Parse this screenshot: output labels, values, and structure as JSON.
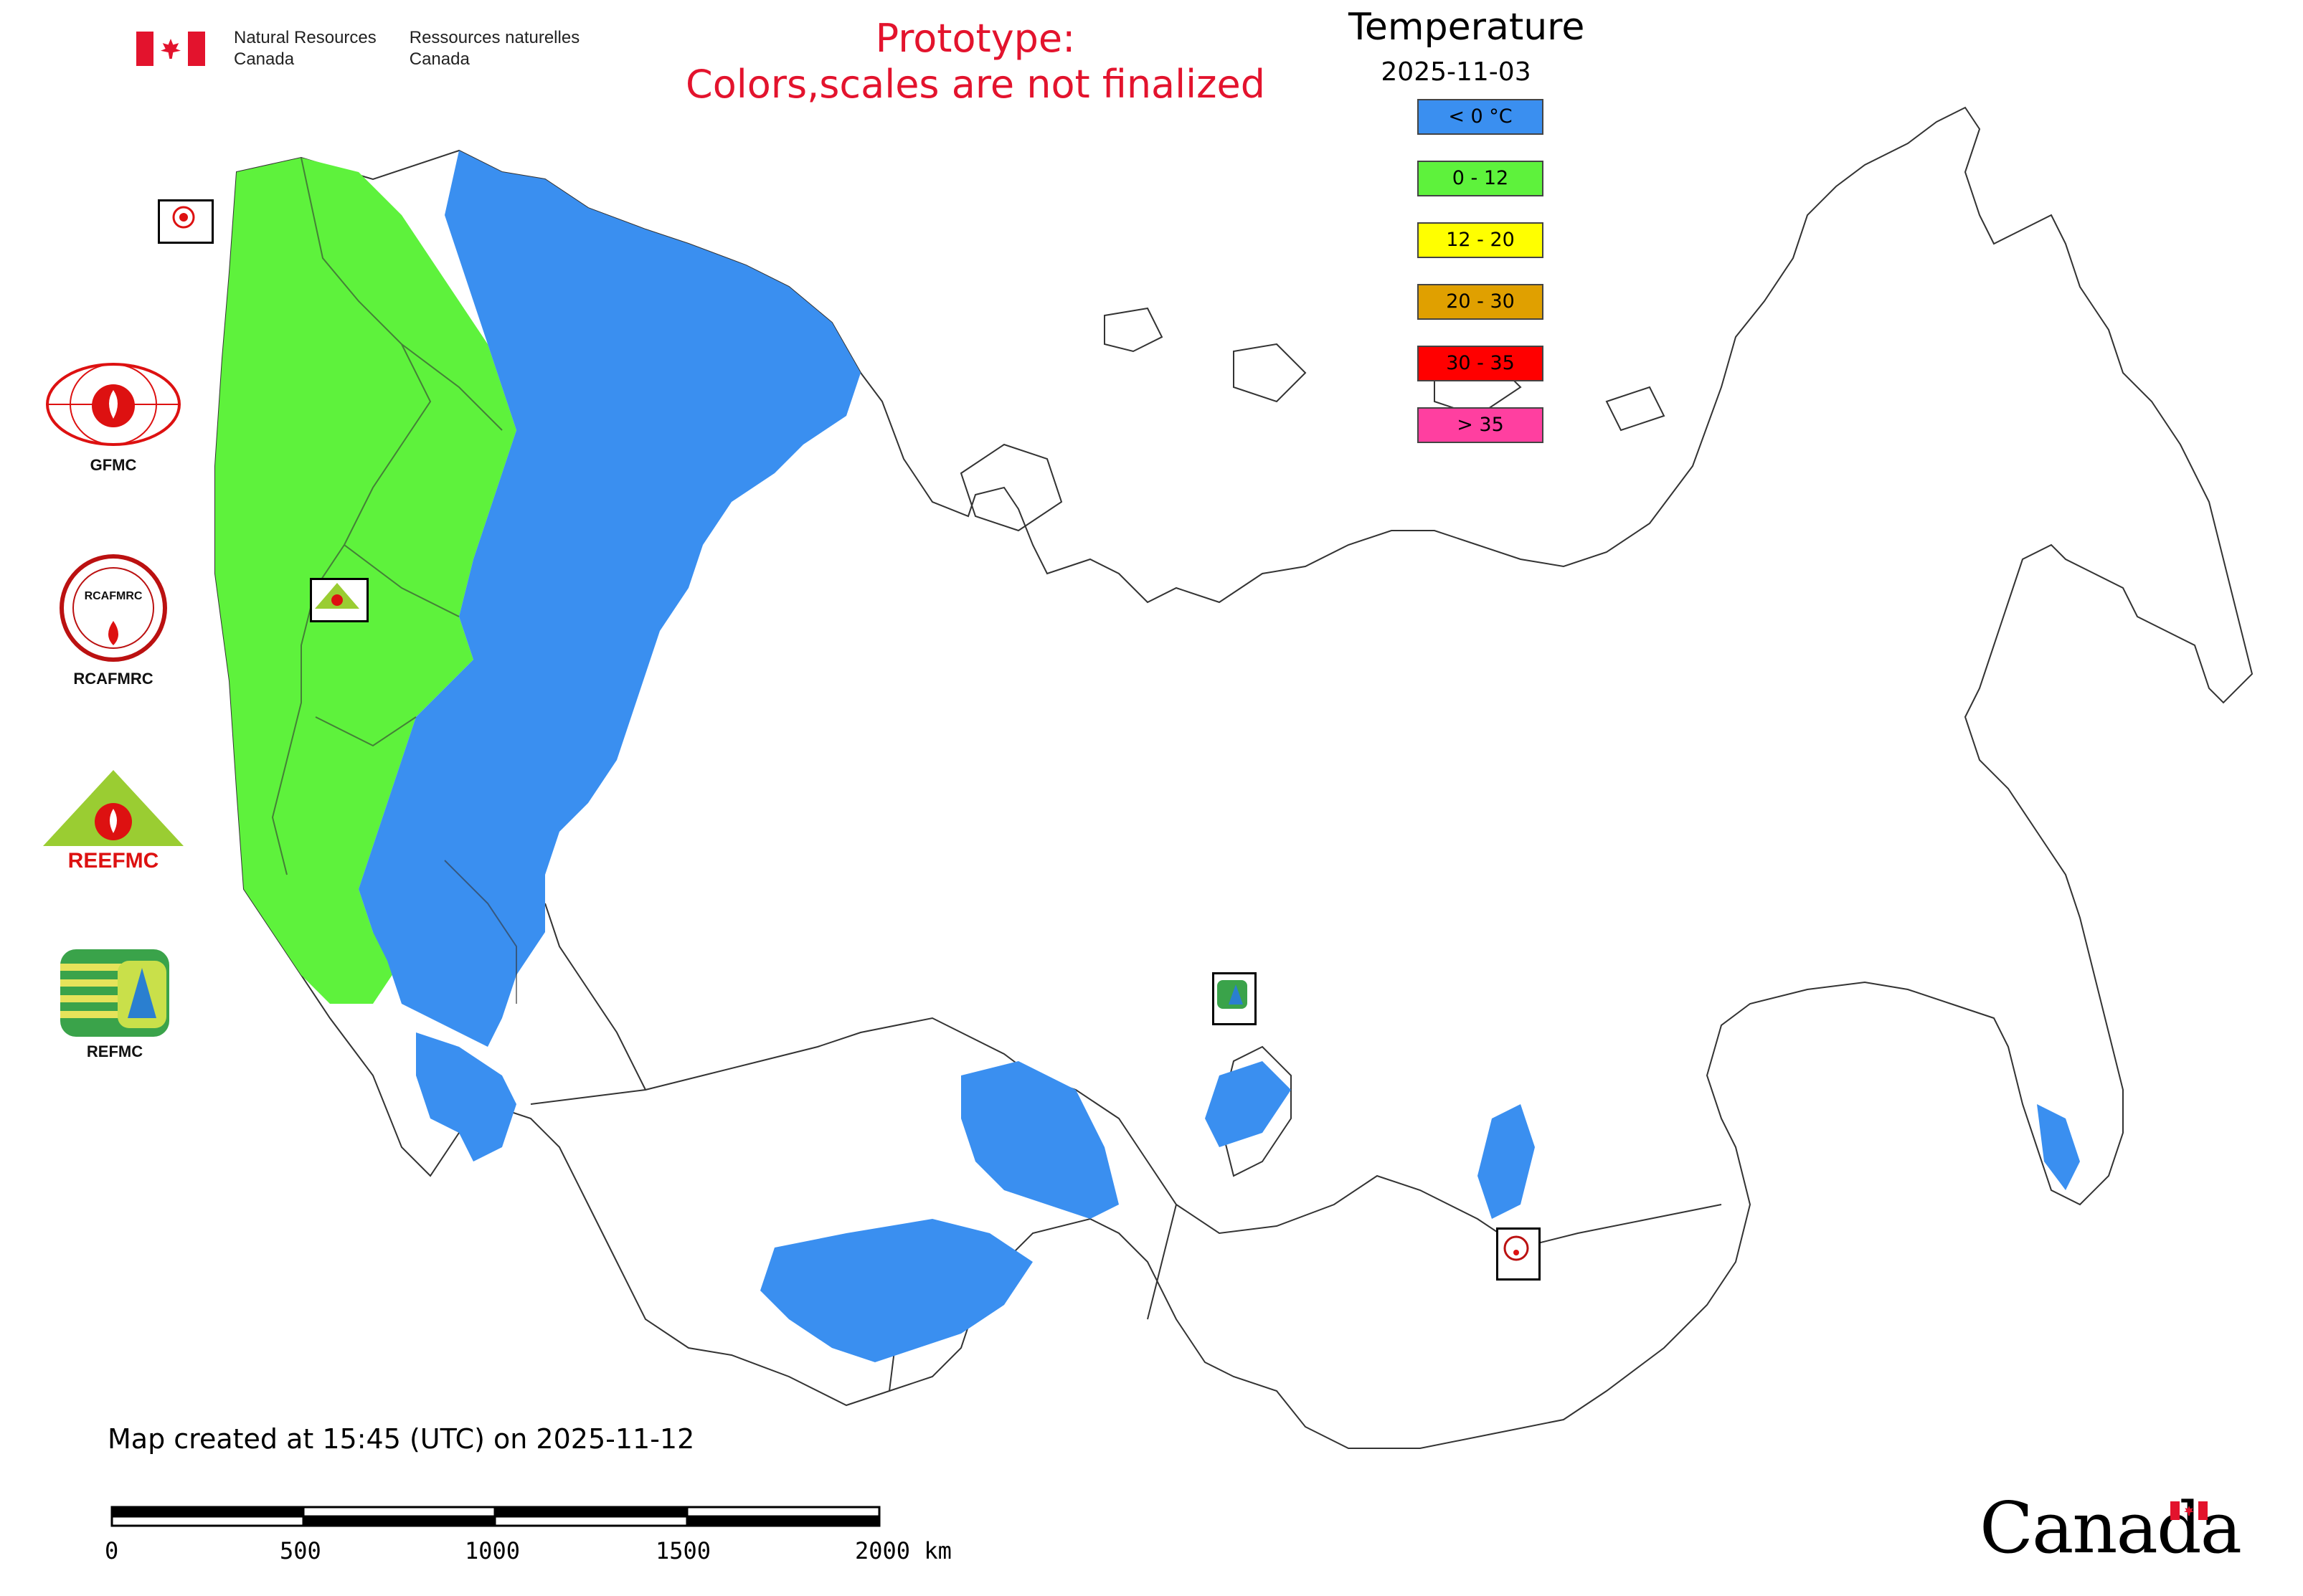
{
  "header": {
    "agency_en_line1": "Natural Resources",
    "agency_en_line2": "Canada",
    "agency_fr_line1": "Ressources naturelles",
    "agency_fr_line2": "Canada",
    "prototype_line1": "Prototype:",
    "prototype_line2": "Colors,scales are not finalized"
  },
  "legend": {
    "title": "Temperature",
    "date": "2025-11-03",
    "items": [
      {
        "label": "< 0 °C",
        "color": "#3a8ff0"
      },
      {
        "label": "0 - 12",
        "color": "#5ef23c"
      },
      {
        "label": "12 - 20",
        "color": "#ffff00"
      },
      {
        "label": "20 - 30",
        "color": "#e0a000"
      },
      {
        "label": "30 - 35",
        "color": "#ff0000"
      },
      {
        "label": "> 35",
        "color": "#ff3fa0"
      }
    ]
  },
  "logos": {
    "gfmc": "GFMC",
    "rcafmrc": "RCAFMRC",
    "reefmc": "REEFMC",
    "refmc": "REFMC",
    "reefmc_text": "REEFMC",
    "rcafmrc_text": "RCAFMRC"
  },
  "footer": {
    "created": "Map created at 15:45 (UTC) on 2025-11-12",
    "scale_ticks": [
      "0",
      "500",
      "1000",
      "1500",
      "2000 km"
    ],
    "canada_wordmark": "Canada"
  },
  "colors": {
    "cold": "#3a8ff0",
    "mild": "#5ef23c",
    "border": "#333333",
    "title_red": "#e3132d"
  }
}
